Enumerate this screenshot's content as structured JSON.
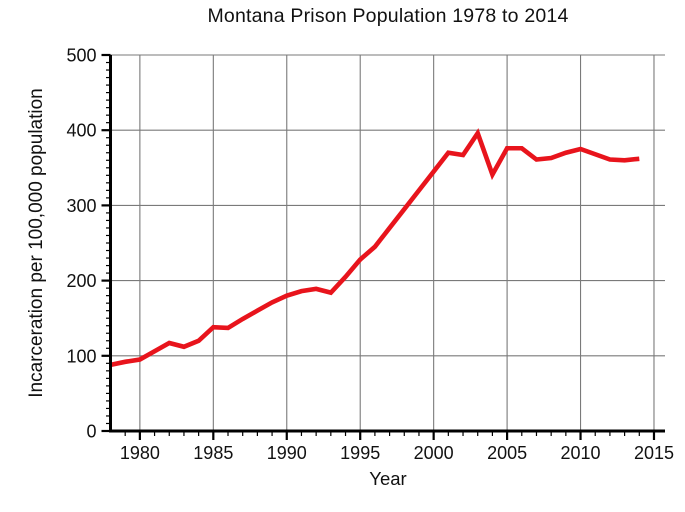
{
  "chart": {
    "title": "Montana Prison Population 1978 to 2014",
    "xlabel": "Year",
    "ylabel": "Incarceration per 100,000 population"
  },
  "chart_data": {
    "type": "line",
    "title": "Montana Prison Population 1978 to 2014",
    "xlabel": "Year",
    "ylabel": "Incarceration per 100,000 population",
    "x": [
      1978,
      1979,
      1980,
      1981,
      1982,
      1983,
      1984,
      1985,
      1986,
      1987,
      1988,
      1989,
      1990,
      1991,
      1992,
      1993,
      1994,
      1995,
      1996,
      1997,
      1998,
      1999,
      2000,
      2001,
      2002,
      2003,
      2004,
      2005,
      2006,
      2007,
      2008,
      2009,
      2010,
      2011,
      2012,
      2013,
      2014
    ],
    "y": [
      88,
      92,
      95,
      106,
      117,
      112,
      120,
      138,
      137,
      149,
      160,
      171,
      180,
      186,
      189,
      184,
      205,
      228,
      245,
      270,
      295,
      320,
      345,
      370,
      367,
      396,
      341,
      376,
      376,
      361,
      363,
      370,
      375,
      368,
      361,
      360,
      362
    ],
    "xlim": [
      1978,
      2015.75
    ],
    "ylim": [
      0,
      500
    ],
    "x_major_ticks": [
      1980,
      1985,
      1990,
      1995,
      2000,
      2005,
      2010,
      2015
    ],
    "x_minor_step": 1,
    "y_major_ticks": [
      0,
      100,
      200,
      300,
      400,
      500
    ],
    "y_minor_step": 10,
    "grid": true,
    "legend": "none",
    "line_color": "#e8141c",
    "grid_color": "#7a7a7a",
    "axis_color": "#000000"
  }
}
